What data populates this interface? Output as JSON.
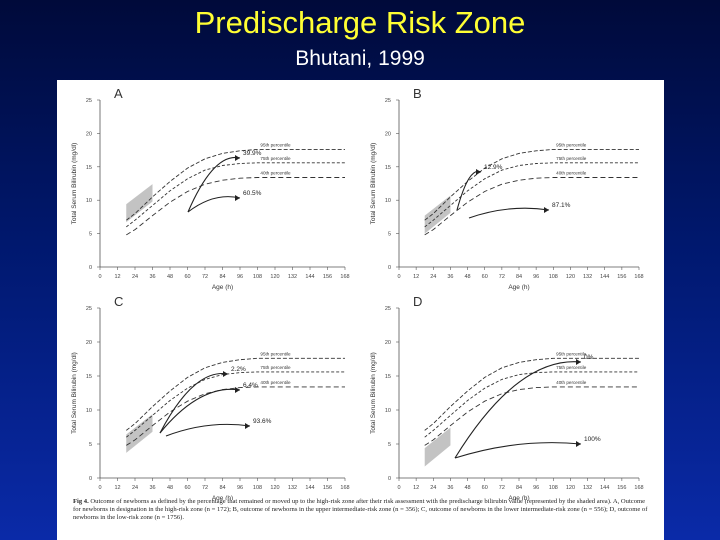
{
  "slide": {
    "title": "Predischarge Risk Zone",
    "subtitle": "Bhutani, 1999",
    "colors": {
      "title": "#ffff33",
      "subtitle": "#ffffff",
      "background": "#00186e"
    }
  },
  "figure": {
    "caption_label": "Fig 4.",
    "caption_text": "Outcome of newborns as defined by the percentage that remained or moved up to the high-risk zone after their risk assessment with the predischarge bilirubin value (represented by the shaded area). A, Outcome for newborns in designation in the high-risk zone (n = 172); B, outcome of newborns in the upper intermediate-risk zone (n = 356); C, outcome of newborns in the lower intermediate-risk zone (n = 556); D, outcome of newborns in the low-risk zone (n = 1756)."
  },
  "chart_data": [
    {
      "panel": "A",
      "type": "line",
      "xlabel": "Age (h)",
      "ylabel": "Total Serum Bilirubin (mg/dl)",
      "xticks": [
        "0",
        "12",
        "24",
        "36",
        "48",
        "60",
        "72",
        "84",
        "96",
        "108",
        "120",
        "132",
        "144",
        "156",
        "168"
      ],
      "yticks": [
        "0",
        "5",
        "10",
        "15",
        "20",
        "25"
      ],
      "xlim": [
        0,
        168
      ],
      "ylim": [
        0,
        25
      ],
      "percentile_labels": [
        "95th percentile",
        "75th percentile",
        "40th percentile"
      ],
      "annotations": [
        "39.9%",
        "60.5%"
      ],
      "series": [
        {
          "name": "95th percentile",
          "x": [
            18,
            24,
            36,
            48,
            60,
            72,
            84,
            96,
            108,
            120,
            168
          ],
          "y": [
            7.0,
            8.0,
            10.5,
            12.8,
            14.8,
            16.2,
            17.0,
            17.4,
            17.6,
            17.6,
            17.6
          ]
        },
        {
          "name": "75th percentile",
          "x": [
            18,
            24,
            36,
            48,
            60,
            72,
            84,
            96,
            108,
            120,
            168
          ],
          "y": [
            6.0,
            7.0,
            9.2,
            11.4,
            13.2,
            14.5,
            15.2,
            15.5,
            15.6,
            15.6,
            15.6
          ]
        },
        {
          "name": "40th percentile",
          "x": [
            18,
            24,
            36,
            48,
            60,
            72,
            84,
            96,
            108,
            120,
            168
          ],
          "y": [
            4.8,
            5.6,
            7.7,
            9.7,
            11.3,
            12.4,
            13.0,
            13.3,
            13.4,
            13.4,
            13.4
          ]
        }
      ]
    },
    {
      "panel": "B",
      "type": "line",
      "xlabel": "Age (h)",
      "ylabel": "Total Serum Bilirubin (mg/dl)",
      "xticks": [
        "0",
        "12",
        "24",
        "36",
        "48",
        "60",
        "72",
        "84",
        "96",
        "108",
        "120",
        "132",
        "144",
        "156",
        "168"
      ],
      "yticks": [
        "0",
        "5",
        "10",
        "15",
        "20",
        "25"
      ],
      "xlim": [
        0,
        168
      ],
      "ylim": [
        0,
        25
      ],
      "percentile_labels": [
        "95th percentile",
        "75th percentile",
        "40th percentile"
      ],
      "annotations": [
        "12.9%",
        "87.1%"
      ],
      "series": [
        {
          "name": "95th percentile",
          "x": [
            18,
            24,
            36,
            48,
            60,
            72,
            84,
            96,
            108,
            120,
            168
          ],
          "y": [
            7.0,
            8.0,
            10.5,
            12.8,
            14.8,
            16.2,
            17.0,
            17.4,
            17.6,
            17.6,
            17.6
          ]
        },
        {
          "name": "75th percentile",
          "x": [
            18,
            24,
            36,
            48,
            60,
            72,
            84,
            96,
            108,
            120,
            168
          ],
          "y": [
            6.0,
            7.0,
            9.2,
            11.4,
            13.2,
            14.5,
            15.2,
            15.5,
            15.6,
            15.6,
            15.6
          ]
        },
        {
          "name": "40th percentile",
          "x": [
            18,
            24,
            36,
            48,
            60,
            72,
            84,
            96,
            108,
            120,
            168
          ],
          "y": [
            4.8,
            5.6,
            7.7,
            9.7,
            11.3,
            12.4,
            13.0,
            13.3,
            13.4,
            13.4,
            13.4
          ]
        }
      ]
    },
    {
      "panel": "C",
      "type": "line",
      "xlabel": "Age (h)",
      "ylabel": "Total Serum Bilirubin (mg/dl)",
      "xticks": [
        "0",
        "12",
        "24",
        "36",
        "48",
        "60",
        "72",
        "84",
        "96",
        "108",
        "120",
        "132",
        "144",
        "156",
        "168"
      ],
      "yticks": [
        "0",
        "5",
        "10",
        "15",
        "20",
        "25"
      ],
      "xlim": [
        0,
        168
      ],
      "ylim": [
        0,
        25
      ],
      "percentile_labels": [
        "95th percentile",
        "75th percentile",
        "40th percentile"
      ],
      "annotations": [
        "2.2%",
        "6.4%",
        "93.6%"
      ],
      "series": [
        {
          "name": "95th percentile",
          "x": [
            18,
            24,
            36,
            48,
            60,
            72,
            84,
            96,
            108,
            120,
            168
          ],
          "y": [
            7.0,
            8.0,
            10.5,
            12.8,
            14.8,
            16.2,
            17.0,
            17.4,
            17.6,
            17.6,
            17.6
          ]
        },
        {
          "name": "75th percentile",
          "x": [
            18,
            24,
            36,
            48,
            60,
            72,
            84,
            96,
            108,
            120,
            168
          ],
          "y": [
            6.0,
            7.0,
            9.2,
            11.4,
            13.2,
            14.5,
            15.2,
            15.5,
            15.6,
            15.6,
            15.6
          ]
        },
        {
          "name": "40th percentile",
          "x": [
            18,
            24,
            36,
            48,
            60,
            72,
            84,
            96,
            108,
            120,
            168
          ],
          "y": [
            4.8,
            5.6,
            7.7,
            9.7,
            11.3,
            12.4,
            13.0,
            13.3,
            13.4,
            13.4,
            13.4
          ]
        }
      ]
    },
    {
      "panel": "D",
      "type": "line",
      "xlabel": "Age (h)",
      "ylabel": "Total Serum Bilirubin (mg/dl)",
      "xticks": [
        "0",
        "12",
        "24",
        "36",
        "48",
        "60",
        "72",
        "84",
        "96",
        "108",
        "120",
        "132",
        "144",
        "156",
        "168"
      ],
      "yticks": [
        "0",
        "5",
        "10",
        "15",
        "20",
        "25"
      ],
      "xlim": [
        0,
        168
      ],
      "ylim": [
        0,
        25
      ],
      "percentile_labels": [
        "95th percentile",
        "75th percentile",
        "40th percentile"
      ],
      "annotations": [
        "0%",
        "100%"
      ],
      "series": [
        {
          "name": "95th percentile",
          "x": [
            18,
            24,
            36,
            48,
            60,
            72,
            84,
            96,
            108,
            120,
            168
          ],
          "y": [
            7.0,
            8.0,
            10.5,
            12.8,
            14.8,
            16.2,
            17.0,
            17.4,
            17.6,
            17.6,
            17.6
          ]
        },
        {
          "name": "75th percentile",
          "x": [
            18,
            24,
            36,
            48,
            60,
            72,
            84,
            96,
            108,
            120,
            168
          ],
          "y": [
            6.0,
            7.0,
            9.2,
            11.4,
            13.2,
            14.5,
            15.2,
            15.5,
            15.6,
            15.6,
            15.6
          ]
        },
        {
          "name": "40th percentile",
          "x": [
            18,
            24,
            36,
            48,
            60,
            72,
            84,
            96,
            108,
            120,
            168
          ],
          "y": [
            4.8,
            5.6,
            7.7,
            9.7,
            11.3,
            12.4,
            13.0,
            13.3,
            13.4,
            13.4,
            13.4
          ]
        }
      ]
    }
  ]
}
